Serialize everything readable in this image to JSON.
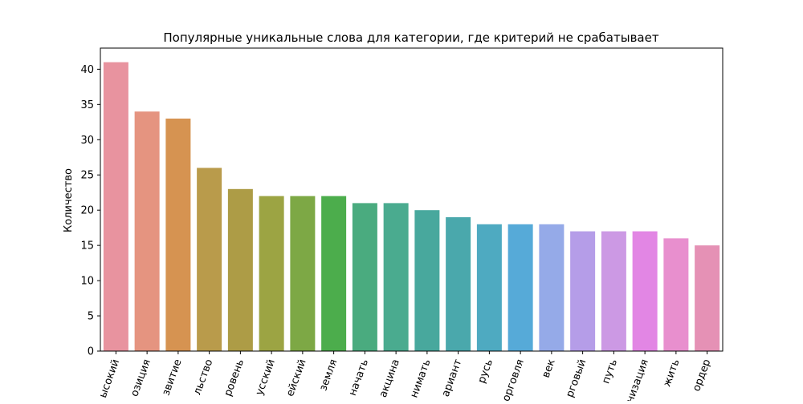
{
  "chart_data": {
    "type": "bar",
    "title": "Популярные уникальные слова для категории, где критерий не срабатывает",
    "xlabel": "",
    "ylabel": "Количество",
    "ylim": [
      0,
      43
    ],
    "yticks": [
      0,
      5,
      10,
      15,
      20,
      25,
      30,
      35,
      40
    ],
    "grid": false,
    "categories": [
      "высокий",
      "позиция",
      "развитие",
      "строительство",
      "уровень",
      "русский",
      "европейский",
      "земля",
      "начать",
      "вакцина",
      "понимать",
      "вариант",
      "русь",
      "торговля",
      "век",
      "торговый",
      "путь",
      "организация",
      "жить",
      "ордер"
    ],
    "tick_labels_visible": [
      "ысокий",
      "озиция",
      "звитие",
      "льство",
      "ровень",
      "усский",
      "ейский",
      "земля",
      "начать",
      "акцина",
      "нимать",
      "ариант",
      "русь",
      "орговля",
      "век",
      "рговый",
      "путь",
      "низация",
      "жить",
      "ордер"
    ],
    "values": [
      41,
      34,
      33,
      26,
      23,
      22,
      22,
      22,
      21,
      21,
      20,
      19,
      18,
      18,
      18,
      17,
      17,
      17,
      16,
      15
    ],
    "colors": [
      "#e8939f",
      "#e59480",
      "#d69351",
      "#b99b4b",
      "#ad9c46",
      "#9ca443",
      "#7da845",
      "#4cad4c",
      "#4aab7f",
      "#4aab8f",
      "#48a89d",
      "#4aa8ac",
      "#4eaac1",
      "#56aad8",
      "#95aae8",
      "#b59de8",
      "#cc99e4",
      "#e286e4",
      "#e88fce",
      "#e591b5"
    ]
  }
}
